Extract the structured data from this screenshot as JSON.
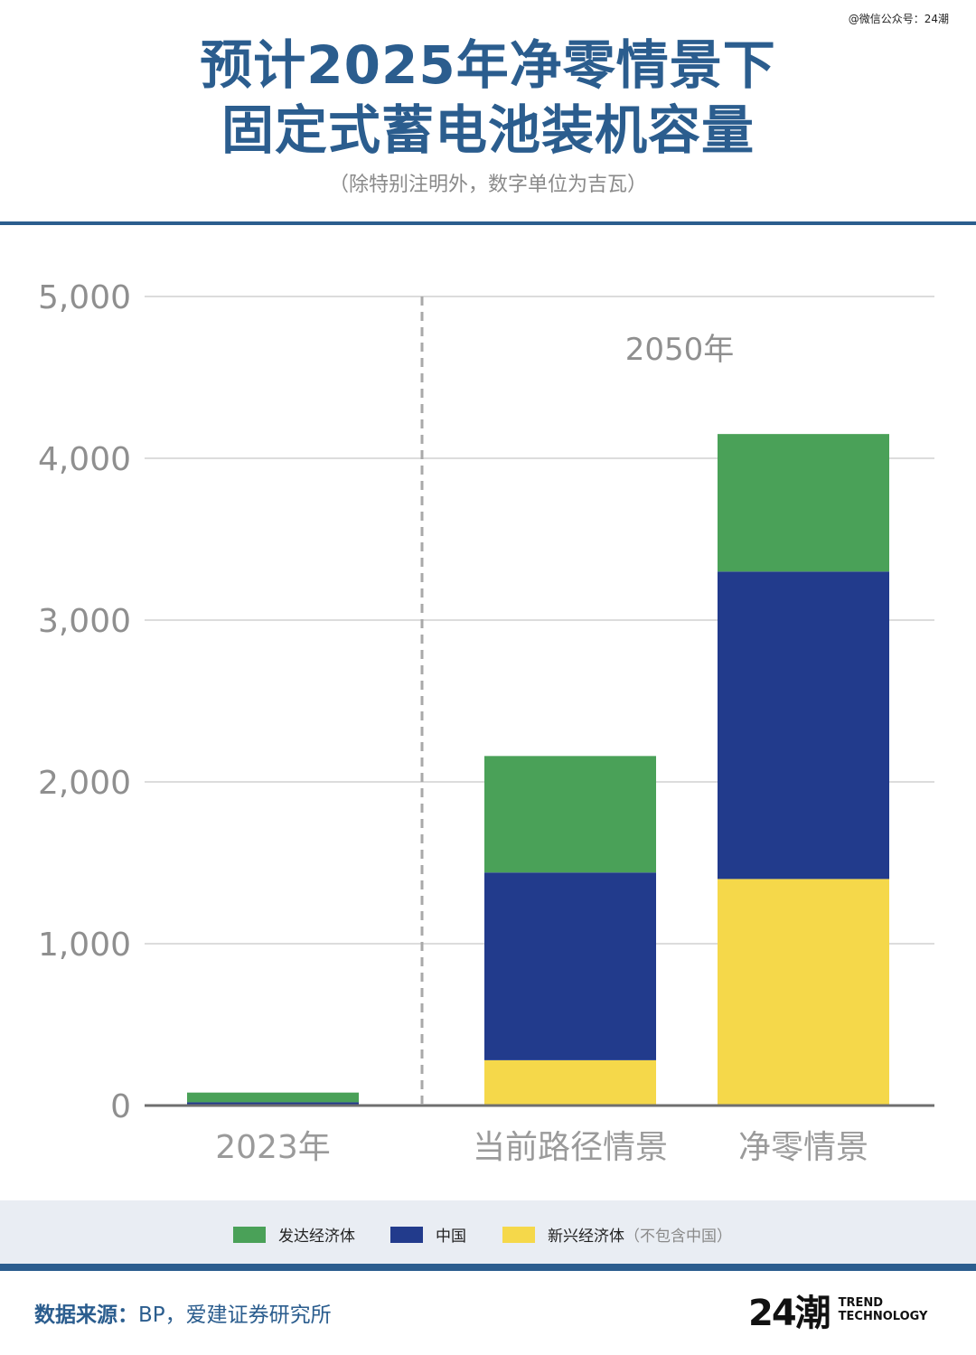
{
  "watermark": "@微信公众号：24潮",
  "header": {
    "title_line1": "预计2025年净零情景下",
    "title_line2": "固定式蓄电池装机容量",
    "subtitle": "（除特别注明外，数字单位为吉瓦）"
  },
  "chart_data": {
    "type": "bar",
    "stacked": true,
    "categories": [
      "2023年",
      "当前路径情景",
      "净零情景"
    ],
    "annotation": "2050年",
    "y_ticks": [
      "0",
      "1,000",
      "2,000",
      "3,000",
      "4,000",
      "5,000"
    ],
    "ylim": [
      0,
      5000
    ],
    "grid": true,
    "series": [
      {
        "name": "新兴经济体（不包含中国）",
        "color": "#f5d84a",
        "values": [
          0,
          280,
          1400
        ]
      },
      {
        "name": "中国",
        "color": "#223b8c",
        "values": [
          20,
          1160,
          1900
        ]
      },
      {
        "name": "发达经济体",
        "color": "#4aa158",
        "values": [
          60,
          720,
          850
        ]
      }
    ]
  },
  "legend": {
    "items": [
      {
        "label": "发达经济体",
        "note": "",
        "color": "#4aa158"
      },
      {
        "label": "中国",
        "note": "",
        "color": "#223b8c"
      },
      {
        "label": "新兴经济体",
        "note": "（不包含中国）",
        "color": "#f5d84a"
      }
    ]
  },
  "footer": {
    "source_label": "数据来源：",
    "source_text": "BP，爱建证券研究所",
    "logo_mark": "24潮",
    "logo_line1": "TREND",
    "logo_line2": "TECHNOLOGY"
  }
}
